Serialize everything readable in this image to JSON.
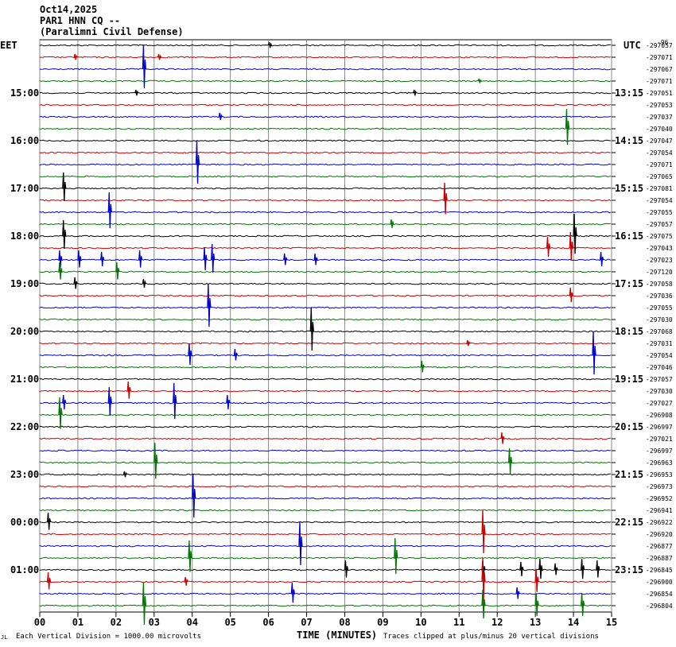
{
  "header": {
    "date": "Oct14,2025",
    "channel": "PAR1 HNN CQ --",
    "site": "(Paralimni Civil Defense)"
  },
  "left_timezone": "EET",
  "right_timezone": "UTC",
  "corner_mark": "-96",
  "bottom_corner_mark": "JL",
  "x_axis_label": "TIME (MINUTES)",
  "footer_left": "Each Vertical Division = 1000.00 microvolts",
  "footer_right": "Traces clipped at plus/minus 20 vertical divisions",
  "colors": {
    "trace_cycle": [
      "#000000",
      "#cc0000",
      "#0000cc",
      "#007700"
    ],
    "grid": "#888888"
  },
  "chart_data": {
    "type": "helicorder",
    "x": [
      0,
      1,
      2,
      3,
      4,
      5,
      6,
      7,
      8,
      9,
      10,
      11,
      12,
      13,
      14,
      15
    ],
    "x_tick_labels": [
      "00",
      "01",
      "02",
      "03",
      "04",
      "05",
      "06",
      "07",
      "08",
      "09",
      "10",
      "11",
      "12",
      "13",
      "14",
      "15"
    ],
    "xlim": [
      0,
      15
    ],
    "trace_count": 48,
    "left_hour_labels": [
      {
        "trace": 4,
        "label": "15:00"
      },
      {
        "trace": 8,
        "label": "16:00"
      },
      {
        "trace": 12,
        "label": "17:00"
      },
      {
        "trace": 16,
        "label": "18:00"
      },
      {
        "trace": 20,
        "label": "19:00"
      },
      {
        "trace": 24,
        "label": "20:00"
      },
      {
        "trace": 28,
        "label": "21:00"
      },
      {
        "trace": 32,
        "label": "22:00"
      },
      {
        "trace": 36,
        "label": "23:00"
      },
      {
        "trace": 40,
        "label": "00:00"
      },
      {
        "trace": 44,
        "label": "01:00"
      }
    ],
    "right_hour_labels": [
      {
        "trace": 4,
        "label": "13:15"
      },
      {
        "trace": 8,
        "label": "14:15"
      },
      {
        "trace": 12,
        "label": "15:15"
      },
      {
        "trace": 16,
        "label": "16:15"
      },
      {
        "trace": 20,
        "label": "17:15"
      },
      {
        "trace": 24,
        "label": "18:15"
      },
      {
        "trace": 28,
        "label": "19:15"
      },
      {
        "trace": 32,
        "label": "20:15"
      },
      {
        "trace": 36,
        "label": "21:15"
      },
      {
        "trace": 40,
        "label": "22:15"
      },
      {
        "trace": 44,
        "label": "23:15"
      }
    ],
    "trace_offsets": [
      "-297057",
      "-297071",
      "-297067",
      "-297071",
      "-297051",
      "-297053",
      "-297037",
      "-297040",
      "-297047",
      "-297054",
      "-297071",
      "-297065",
      "-297081",
      "-297054",
      "-297055",
      "-297057",
      "-297075",
      "-297043",
      "-297023",
      "-297120",
      "-297058",
      "-297036",
      "-297055",
      "-297030",
      "-297068",
      "-297031",
      "-297054",
      "-297046",
      "-297057",
      "-297030",
      "-297027",
      "-296908",
      "-296997",
      "-297021",
      "-296997",
      "-296963",
      "-296953",
      "-296973",
      "-296952",
      "-296941",
      "-296922",
      "-296920",
      "-296877",
      "-296887",
      "-296845",
      "-296900",
      "-296854",
      "-296804"
    ],
    "events": [
      {
        "trace": 0,
        "minute": 6.0,
        "amp": 4
      },
      {
        "trace": 1,
        "minute": 0.9,
        "amp": 4
      },
      {
        "trace": 1,
        "minute": 3.1,
        "amp": 4
      },
      {
        "trace": 2,
        "minute": 2.7,
        "amp": 30
      },
      {
        "trace": 3,
        "minute": 11.5,
        "amp": 3
      },
      {
        "trace": 4,
        "minute": 2.5,
        "amp": 4
      },
      {
        "trace": 4,
        "minute": 9.8,
        "amp": 4
      },
      {
        "trace": 6,
        "minute": 4.7,
        "amp": 5
      },
      {
        "trace": 7,
        "minute": 13.8,
        "amp": 25
      },
      {
        "trace": 10,
        "minute": 4.1,
        "amp": 30
      },
      {
        "trace": 12,
        "minute": 0.6,
        "amp": 20
      },
      {
        "trace": 13,
        "minute": 10.6,
        "amp": 22
      },
      {
        "trace": 14,
        "minute": 1.8,
        "amp": 25
      },
      {
        "trace": 15,
        "minute": 9.2,
        "amp": 6
      },
      {
        "trace": 16,
        "minute": 0.6,
        "amp": 20
      },
      {
        "trace": 16,
        "minute": 14.0,
        "amp": 28
      },
      {
        "trace": 17,
        "minute": 13.3,
        "amp": 14
      },
      {
        "trace": 17,
        "minute": 13.9,
        "amp": 20
      },
      {
        "trace": 18,
        "minute": 0.5,
        "amp": 12
      },
      {
        "trace": 18,
        "minute": 1.0,
        "amp": 12
      },
      {
        "trace": 18,
        "minute": 1.6,
        "amp": 10
      },
      {
        "trace": 18,
        "minute": 2.6,
        "amp": 12
      },
      {
        "trace": 18,
        "minute": 4.3,
        "amp": 16
      },
      {
        "trace": 18,
        "minute": 4.5,
        "amp": 20
      },
      {
        "trace": 18,
        "minute": 6.4,
        "amp": 8
      },
      {
        "trace": 18,
        "minute": 7.2,
        "amp": 8
      },
      {
        "trace": 18,
        "minute": 14.7,
        "amp": 10
      },
      {
        "trace": 19,
        "minute": 0.5,
        "amp": 12
      },
      {
        "trace": 19,
        "minute": 2.0,
        "amp": 12
      },
      {
        "trace": 20,
        "minute": 0.9,
        "amp": 8
      },
      {
        "trace": 20,
        "minute": 2.7,
        "amp": 6
      },
      {
        "trace": 21,
        "minute": 13.9,
        "amp": 10
      },
      {
        "trace": 22,
        "minute": 4.4,
        "amp": 30
      },
      {
        "trace": 24,
        "minute": 7.1,
        "amp": 30
      },
      {
        "trace": 25,
        "minute": 11.2,
        "amp": 4
      },
      {
        "trace": 26,
        "minute": 3.9,
        "amp": 15
      },
      {
        "trace": 26,
        "minute": 5.1,
        "amp": 8
      },
      {
        "trace": 26,
        "minute": 14.5,
        "amp": 30
      },
      {
        "trace": 27,
        "minute": 10.0,
        "amp": 8
      },
      {
        "trace": 29,
        "minute": 2.3,
        "amp": 12
      },
      {
        "trace": 30,
        "minute": 0.6,
        "amp": 10
      },
      {
        "trace": 30,
        "minute": 1.8,
        "amp": 20
      },
      {
        "trace": 30,
        "minute": 3.5,
        "amp": 25
      },
      {
        "trace": 30,
        "minute": 4.9,
        "amp": 10
      },
      {
        "trace": 31,
        "minute": 0.5,
        "amp": 22
      },
      {
        "trace": 33,
        "minute": 12.1,
        "amp": 8
      },
      {
        "trace": 35,
        "minute": 12.3,
        "amp": 18
      },
      {
        "trace": 35,
        "minute": 3.0,
        "amp": 25
      },
      {
        "trace": 36,
        "minute": 2.2,
        "amp": 4
      },
      {
        "trace": 38,
        "minute": 4.0,
        "amp": 30
      },
      {
        "trace": 40,
        "minute": 0.2,
        "amp": 12
      },
      {
        "trace": 41,
        "minute": 11.6,
        "amp": 30
      },
      {
        "trace": 42,
        "minute": 6.8,
        "amp": 30
      },
      {
        "trace": 43,
        "minute": 9.3,
        "amp": 25
      },
      {
        "trace": 43,
        "minute": 3.9,
        "amp": 22
      },
      {
        "trace": 44,
        "minute": 11.6,
        "amp": 12
      },
      {
        "trace": 44,
        "minute": 12.6,
        "amp": 10
      },
      {
        "trace": 44,
        "minute": 13.1,
        "amp": 14
      },
      {
        "trace": 44,
        "minute": 13.5,
        "amp": 8
      },
      {
        "trace": 44,
        "minute": 14.2,
        "amp": 14
      },
      {
        "trace": 44,
        "minute": 14.6,
        "amp": 12
      },
      {
        "trace": 44,
        "minute": 8.0,
        "amp": 12
      },
      {
        "trace": 45,
        "minute": 0.2,
        "amp": 12
      },
      {
        "trace": 45,
        "minute": 3.8,
        "amp": 6
      },
      {
        "trace": 45,
        "minute": 11.6,
        "amp": 30
      },
      {
        "trace": 45,
        "minute": 13.0,
        "amp": 16
      },
      {
        "trace": 46,
        "minute": 6.6,
        "amp": 14
      },
      {
        "trace": 46,
        "minute": 12.5,
        "amp": 8
      },
      {
        "trace": 47,
        "minute": 2.7,
        "amp": 30
      },
      {
        "trace": 47,
        "minute": 11.6,
        "amp": 20
      },
      {
        "trace": 47,
        "minute": 13.0,
        "amp": 16
      },
      {
        "trace": 47,
        "minute": 14.2,
        "amp": 16
      }
    ]
  }
}
